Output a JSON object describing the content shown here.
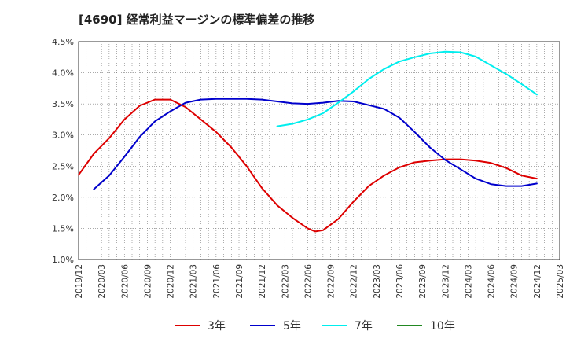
{
  "chart_data": {
    "type": "line",
    "title": "[4690]  経常利益マージンの標準偏差の推移",
    "xlabel": "",
    "ylabel": "",
    "x": [
      "2019/12",
      "2020/03",
      "2020/06",
      "2020/09",
      "2020/12",
      "2021/03",
      "2021/06",
      "2021/09",
      "2021/12",
      "2022/03",
      "2022/06",
      "2022/09",
      "2022/12",
      "2023/03",
      "2023/06",
      "2023/09",
      "2023/12",
      "2024/03",
      "2024/06",
      "2024/09",
      "2024/12",
      "2025/03"
    ],
    "x_months": [
      0,
      3,
      6,
      9,
      12,
      15,
      18,
      21,
      24,
      27,
      30,
      33,
      36,
      39,
      42,
      45,
      48,
      51,
      54,
      57,
      60,
      63
    ],
    "yticks": [
      "1.0%",
      "1.5%",
      "2.0%",
      "2.5%",
      "3.0%",
      "3.5%",
      "4.0%",
      "4.5%"
    ],
    "ylim": [
      1.0,
      4.5
    ],
    "grid": true,
    "legend_position": "bottom",
    "series": [
      {
        "name": "3年",
        "color": "#dd0000",
        "points": [
          [
            0,
            2.36
          ],
          [
            2,
            2.7
          ],
          [
            4,
            2.95
          ],
          [
            6,
            3.25
          ],
          [
            8,
            3.47
          ],
          [
            10,
            3.57
          ],
          [
            12,
            3.57
          ],
          [
            14,
            3.45
          ],
          [
            16,
            3.25
          ],
          [
            18,
            3.05
          ],
          [
            20,
            2.8
          ],
          [
            22,
            2.5
          ],
          [
            24,
            2.15
          ],
          [
            26,
            1.87
          ],
          [
            28,
            1.67
          ],
          [
            30,
            1.5
          ],
          [
            31,
            1.45
          ],
          [
            32,
            1.47
          ],
          [
            34,
            1.65
          ],
          [
            36,
            1.93
          ],
          [
            38,
            2.18
          ],
          [
            40,
            2.35
          ],
          [
            42,
            2.48
          ],
          [
            44,
            2.56
          ],
          [
            46,
            2.59
          ],
          [
            48,
            2.61
          ],
          [
            50,
            2.61
          ],
          [
            52,
            2.59
          ],
          [
            54,
            2.55
          ],
          [
            56,
            2.47
          ],
          [
            58,
            2.35
          ],
          [
            60,
            2.3
          ]
        ]
      },
      {
        "name": "5年",
        "color": "#0000cc",
        "points": [
          [
            2,
            2.13
          ],
          [
            4,
            2.35
          ],
          [
            6,
            2.65
          ],
          [
            8,
            2.97
          ],
          [
            10,
            3.22
          ],
          [
            12,
            3.38
          ],
          [
            14,
            3.52
          ],
          [
            16,
            3.57
          ],
          [
            18,
            3.58
          ],
          [
            20,
            3.58
          ],
          [
            22,
            3.58
          ],
          [
            24,
            3.57
          ],
          [
            26,
            3.54
          ],
          [
            28,
            3.51
          ],
          [
            30,
            3.5
          ],
          [
            32,
            3.52
          ],
          [
            34,
            3.55
          ],
          [
            36,
            3.54
          ],
          [
            38,
            3.48
          ],
          [
            40,
            3.42
          ],
          [
            42,
            3.28
          ],
          [
            44,
            3.05
          ],
          [
            46,
            2.8
          ],
          [
            48,
            2.6
          ],
          [
            50,
            2.45
          ],
          [
            52,
            2.3
          ],
          [
            54,
            2.21
          ],
          [
            56,
            2.18
          ],
          [
            58,
            2.18
          ],
          [
            60,
            2.22
          ]
        ]
      },
      {
        "name": "7年",
        "color": "#00eeee",
        "points": [
          [
            26,
            3.14
          ],
          [
            28,
            3.18
          ],
          [
            30,
            3.25
          ],
          [
            32,
            3.35
          ],
          [
            34,
            3.52
          ],
          [
            36,
            3.7
          ],
          [
            38,
            3.9
          ],
          [
            40,
            4.06
          ],
          [
            42,
            4.18
          ],
          [
            44,
            4.25
          ],
          [
            46,
            4.31
          ],
          [
            48,
            4.34
          ],
          [
            50,
            4.33
          ],
          [
            52,
            4.26
          ],
          [
            54,
            4.12
          ],
          [
            56,
            3.98
          ],
          [
            58,
            3.82
          ],
          [
            60,
            3.65
          ]
        ]
      },
      {
        "name": "10年",
        "color": "#228822",
        "points": []
      }
    ]
  }
}
